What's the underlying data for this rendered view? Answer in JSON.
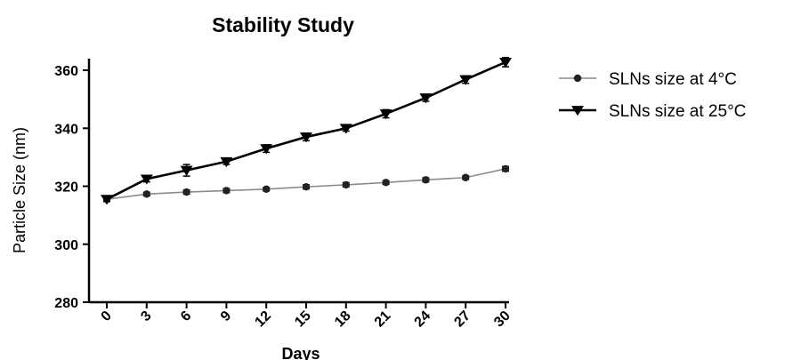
{
  "chart_data": {
    "type": "line",
    "title": "Stability Study",
    "xlabel": "Days",
    "ylabel": "Particle Size (nm)",
    "x": [
      0,
      3,
      6,
      9,
      12,
      15,
      18,
      21,
      24,
      27,
      30
    ],
    "x_tick_labels": [
      "0",
      "3",
      "6",
      "9",
      "12",
      "15",
      "18",
      "21",
      "24",
      "27",
      "30"
    ],
    "y_ticks": [
      280,
      300,
      320,
      340,
      360
    ],
    "ylim": [
      280,
      364
    ],
    "grid": false,
    "legend_position": "right",
    "series": [
      {
        "name": "SLNs size at 4°C",
        "values": [
          315.5,
          317.3,
          318.0,
          318.5,
          319.0,
          319.8,
          320.5,
          321.3,
          322.2,
          323.0,
          326.0
        ],
        "errors": [
          0.6,
          0.6,
          0.7,
          0.7,
          0.6,
          0.7,
          0.7,
          0.6,
          0.7,
          0.6,
          0.8
        ],
        "color": "#8c8c8c",
        "marker": "circle"
      },
      {
        "name": "SLNs size at 25°C",
        "values": [
          315.5,
          322.5,
          325.5,
          328.5,
          333.0,
          337.0,
          340.0,
          345.0,
          350.5,
          356.8,
          362.8
        ],
        "errors": [
          0.8,
          1.0,
          2.0,
          1.0,
          1.3,
          1.3,
          1.0,
          1.4,
          1.2,
          1.3,
          1.6
        ],
        "color": "#000000",
        "marker": "triangle-down"
      }
    ]
  }
}
